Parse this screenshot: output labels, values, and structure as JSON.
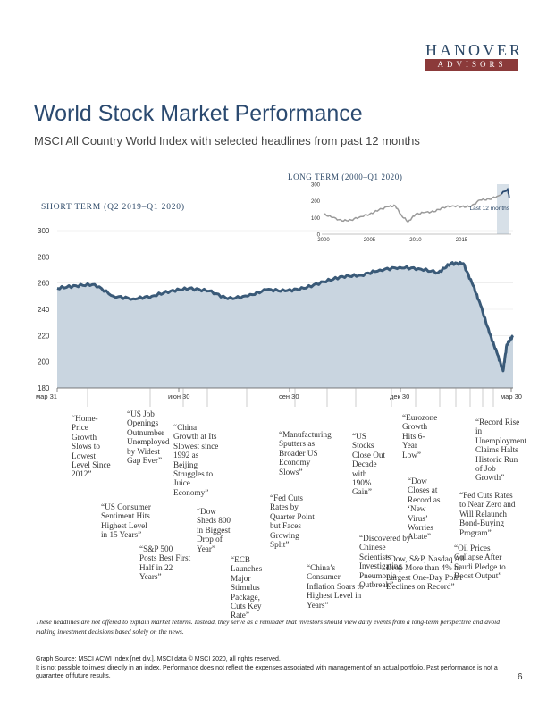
{
  "brand": {
    "name_top": "HANOVER",
    "name_bottom": "ADVISORS",
    "accent": "#8b3a3a",
    "navy": "#2b4766"
  },
  "header": {
    "title": "World Stock Market Performance",
    "subtitle": "MSCI All Country World Index with selected headlines from past 12 months"
  },
  "chart_data": [
    {
      "type": "area",
      "title": "SHORT TERM (Q2 2019–Q1 2020)",
      "x_ticks": [
        "мар 31",
        "июн 30",
        "сен 30",
        "дек 30",
        "мар 30"
      ],
      "ylim": [
        180,
        300
      ],
      "y_ticks": [
        180,
        200,
        220,
        240,
        260,
        280,
        300
      ],
      "x": [
        "2019-03-31",
        "2019-04-15",
        "2019-04-30",
        "2019-05-15",
        "2019-05-31",
        "2019-06-15",
        "2019-06-30",
        "2019-07-15",
        "2019-07-31",
        "2019-08-15",
        "2019-08-31",
        "2019-09-15",
        "2019-09-30",
        "2019-10-15",
        "2019-10-31",
        "2019-11-15",
        "2019-11-30",
        "2019-12-15",
        "2019-12-31",
        "2020-01-15",
        "2020-01-31",
        "2020-02-10",
        "2020-02-20",
        "2020-02-28",
        "2020-03-05",
        "2020-03-12",
        "2020-03-18",
        "2020-03-23",
        "2020-03-26",
        "2020-03-31"
      ],
      "values": [
        256,
        258,
        259,
        250,
        248,
        250,
        254,
        256,
        254,
        248,
        250,
        255,
        254,
        256,
        261,
        265,
        266,
        270,
        272,
        271,
        268,
        275,
        275,
        258,
        243,
        222,
        207,
        193,
        213,
        220
      ],
      "series_name": "MSCI ACWI Index (net div.)"
    },
    {
      "type": "line",
      "title": "LONG TERM (2000–Q1 2020)",
      "x_ticks": [
        "2000",
        "2005",
        "2010",
        "2015"
      ],
      "ylim": [
        0,
        300
      ],
      "y_ticks": [
        0,
        100,
        200,
        300
      ],
      "highlight_label": "Last 12 months",
      "x": [
        2000,
        2001,
        2002,
        2003,
        2004,
        2005,
        2006,
        2007,
        2007.8,
        2008.5,
        2009.2,
        2010,
        2011,
        2012,
        2013,
        2014,
        2015,
        2016,
        2017,
        2018,
        2019,
        2020,
        2020.2
      ],
      "values": [
        120,
        100,
        80,
        85,
        105,
        120,
        145,
        165,
        170,
        110,
        75,
        120,
        130,
        135,
        160,
        170,
        165,
        165,
        205,
        210,
        230,
        270,
        215
      ]
    }
  ],
  "headlines": [
    "“Home-Price Growth Slows to Lowest Level Since 2012”",
    "“US Consumer Sentiment Hits Highest Level in 15 Years”",
    "“US Job Openings Outnumber Unemployed by Widest Gap Ever”",
    "“S&P 500 Posts Best First Half in 22 Years”",
    "“China Growth at Its Slowest since 1992 as Beijing Struggles to Juice Economy”",
    "“Dow Sheds 800 in Biggest Drop of Year”",
    "“ECB Launches Major Stimulus Package, Cuts Key Rate”",
    "“Manufacturing Sputters as Broader US Economy Slows”",
    "“Fed Cuts Rates by Quarter Point but Faces Growing Split”",
    "“China’s Consumer Inflation Soars to Highest Level in Years”",
    "“US Stocks Close Out Decade with 190% Gain”",
    "“Eurozone Growth Hits 6-Year Low”",
    "“Dow Closes at Record as ‘New Virus’ Worries Abate”",
    "“Discovered by Chinese Scientists Investigating Pneumonia Outbreak”",
    "“Dow, S&P, Nasdaq All Drop More than 4% in Largest One-Day Point Declines on Record”",
    "“Record Rise in Unemployment Claims Halts Historic Run of Job Growth”",
    "“Fed Cuts Rates to Near Zero and Will Relaunch Bond-Buying Program”",
    "“Oil Prices Collapse After Saudi Pledge to Boost Output”"
  ],
  "disclaimer": "These headlines are not offered to explain market returns. Instead, they serve as a reminder that investors should view daily events from a long-term perspective and avoid making investment decisions based solely on the news.",
  "footer": {
    "source": "Graph Source: MSCI ACWI Index [net div.]. MSCI data © MSCI 2020, all rights reserved.",
    "note": "It is not possible to invest directly in an index. Performance does not reflect the expenses associated with management of an actual portfolio. Past performance is not a guarantee of future results.",
    "page_number": "6"
  }
}
